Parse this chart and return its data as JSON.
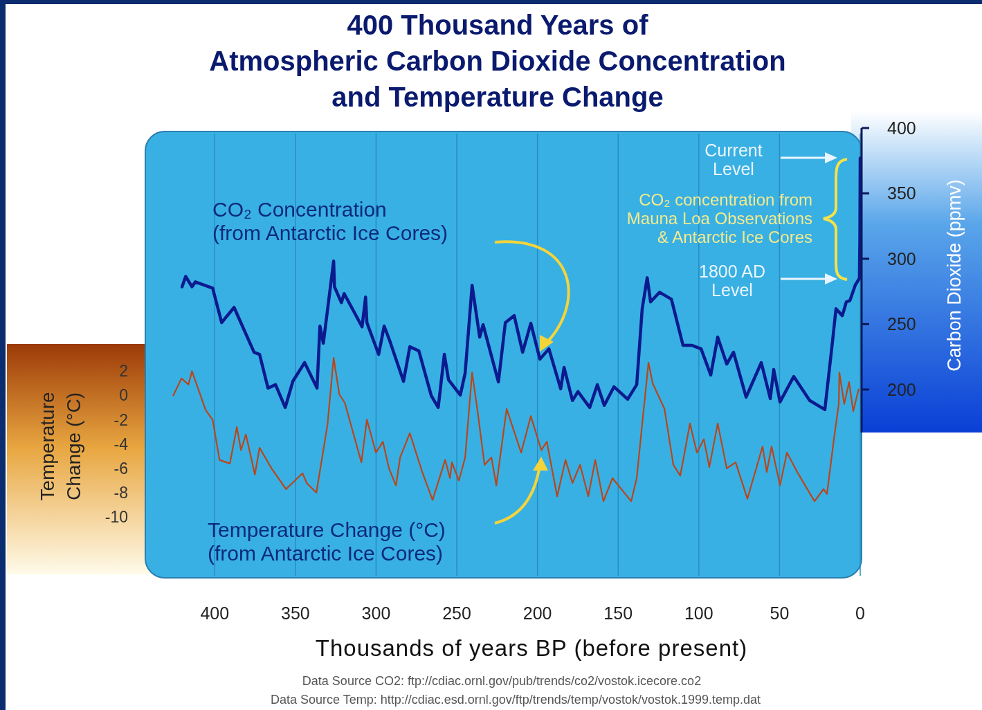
{
  "chart_data": {
    "type": "line",
    "title": "400 Thousand Years of\nAtmospheric Carbon Dioxide Concentration\nand Temperature Change",
    "xlabel": "Thousands of years BP (before present)",
    "ylabel": "Temperature\nChange (°C)",
    "y2label": "Carbon Dioxide (ppmv)",
    "xlim": [
      443,
      0
    ],
    "xticks": [
      400,
      350,
      300,
      250,
      200,
      150,
      100,
      50,
      0
    ],
    "ylim": [
      -15,
      22
    ],
    "yticks": [
      2,
      0,
      -2,
      -4,
      -6,
      -8,
      -10
    ],
    "y2lim": [
      56,
      400
    ],
    "y2ticks": [
      400,
      350,
      300,
      250,
      200
    ],
    "grid": "x",
    "annotations": [
      "CO₂ Concentration\n(from Antarctic Ice Cores)",
      "Temperature Change (°C)\n(from Antarctic Ice Cores)",
      "Current\nLevel",
      "CO₂ concentration from\nMauna Loa Observations\n& Antarctic Ice Cores",
      "1800 AD\nLevel",
      "Data Source CO2: ftp://cdiac.ornl.gov/pub/trends/co2/vostok.icecore.co2",
      "Data Source Temp: http://cdiac.esd.ornl.gov/ftp/trends/temp/vostok/vostok.1999.temp.dat"
    ],
    "series": [
      {
        "axis": "y2",
        "color": "#0c1a8f",
        "x": [
          420.2,
          418.0,
          414.1,
          412.0,
          401.3,
          395.7,
          388.0,
          375.6,
          372.2,
          367.0,
          362.3,
          356.3,
          351.6,
          344.3,
          336.6,
          334.8,
          332.7,
          326.3,
          325.8,
          321.5,
          319.8,
          308.7,
          306.5,
          305.7,
          298.4,
          295.0,
          291.6,
          283.0,
          279.1,
          273.5,
          265.8,
          261.5,
          257.7,
          255.1,
          247.8,
          244.8,
          240.5,
          235.8,
          233.7,
          224.2,
          219.9,
          214.4,
          209.2,
          204.1,
          198.5,
          192.9,
          185.6,
          183.5,
          178.3,
          174.9,
          167.6,
          162.9,
          158.6,
          152.6,
          144.1,
          138.5,
          135.1,
          132.0,
          129.9,
          124.3,
          117.0,
          109.8,
          104.2,
          98.6,
          92.6,
          88.3,
          82.7,
          78.5,
          70.7,
          61.3,
          55.7,
          53.6,
          49.7,
          41.2,
          31.3,
          21.9,
          17.1,
          15.0,
          11.1,
          8.6,
          6.4,
          3.0,
          0.5,
          0.2,
          0
        ],
        "values": [
          278.6,
          286.5,
          278.6,
          282.3,
          277.6,
          251.2,
          262.8,
          228.5,
          226.9,
          201.1,
          203.7,
          186.3,
          206.3,
          220.6,
          201.1,
          248.5,
          235.4,
          298.2,
          278.6,
          266.5,
          273.4,
          248.0,
          270.7,
          251.2,
          226.9,
          248.5,
          237.5,
          206.3,
          232.7,
          229.6,
          195.3,
          186.3,
          226.9,
          207.4,
          195.8,
          212.7,
          279.7,
          240.1,
          249.6,
          205.8,
          251.2,
          256.5,
          228.5,
          250.7,
          223.2,
          231.1,
          200.5,
          216.9,
          191.6,
          198.4,
          186.3,
          203.7,
          187.9,
          202.1,
          192.6,
          203.7,
          261.7,
          285.5,
          267.0,
          274.4,
          269.1,
          233.8,
          233.8,
          231.1,
          211.1,
          240.1,
          219.5,
          228.5,
          194.2,
          220.6,
          193.1,
          215.3,
          190.5,
          210.0,
          191.6,
          184.7,
          237.5,
          261.7,
          256.5,
          267.0,
          268,
          280,
          285,
          315,
          377
        ]
      },
      {
        "color": "#b8461c",
        "x": [
          425.7,
          420.6,
          416.3,
          414.1,
          405.6,
          401.3,
          397.0,
          390.6,
          386.3,
          383.7,
          380.7,
          375.1,
          372.2,
          364.8,
          355.8,
          345.6,
          343.0,
          337.0,
          330.1,
          326.3,
          322.8,
          319.4,
          309.1,
          305.7,
          300.1,
          295.8,
          292.0,
          287.7,
          285.1,
          279.1,
          271.4,
          265.0,
          257.2,
          254.2,
          253.0,
          248.7,
          244.8,
          240.5,
          237.1,
          232.8,
          228.5,
          225.5,
          219.1,
          210.1,
          204.1,
          197.6,
          194.2,
          187.8,
          182.6,
          178.3,
          173.6,
          168.5,
          164.2,
          159.1,
          153.5,
          141.9,
          138.5,
          131.2,
          128.6,
          121.3,
          115.8,
          111.5,
          105.5,
          101.2,
          96.9,
          93.5,
          88.3,
          82.7,
          77.2,
          69.9,
          60.5,
          57.9,
          54.9,
          49.7,
          45.4,
          38.6,
          28.3,
          22.7,
          20.6,
          16.3,
          13.3,
          12.9,
          9.9,
          6.9,
          4.3,
          1.0
        ],
        "values": [
          0.0,
          1.4,
          0.9,
          2.0,
          -1.2,
          -2.0,
          -5.3,
          -5.6,
          -2.6,
          -4.5,
          -3.2,
          -6.5,
          -4.3,
          -6.0,
          -7.7,
          -6.4,
          -7.2,
          -8.0,
          -2.4,
          3.1,
          0.1,
          -0.6,
          -5.5,
          -2.0,
          -4.7,
          -3.8,
          -6.0,
          -7.4,
          -5.1,
          -3.1,
          -6.3,
          -8.6,
          -5.3,
          -6.8,
          -5.5,
          -7.0,
          -5.1,
          1.9,
          -1.3,
          -5.7,
          -5.1,
          -7.4,
          -1.1,
          -4.7,
          -1.7,
          -4.5,
          -3.8,
          -8.3,
          -5.3,
          -7.2,
          -5.7,
          -8.3,
          -5.3,
          -8.7,
          -6.8,
          -8.7,
          -6.8,
          2.7,
          1.0,
          -1.1,
          -5.7,
          -6.6,
          -2.3,
          -4.7,
          -3.6,
          -5.9,
          -2.3,
          -6.0,
          -5.5,
          -8.5,
          -4.2,
          -6.3,
          -4.2,
          -7.4,
          -4.7,
          -6.4,
          -8.7,
          -7.7,
          -8.1,
          -3.6,
          -0.7,
          1.9,
          -0.7,
          1.1,
          -1.3,
          0.5
        ]
      }
    ]
  }
}
